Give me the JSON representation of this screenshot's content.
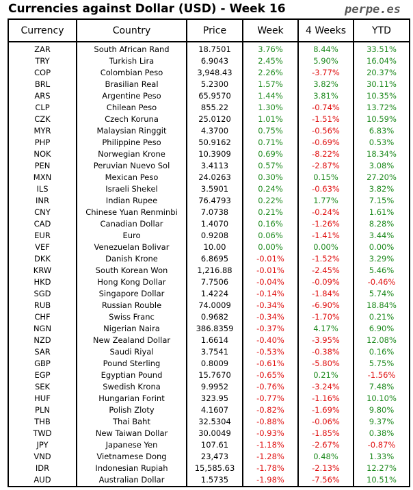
{
  "title": "Currencies against Dollar (USD) - Week 16",
  "brand": "perpe.es",
  "headers": [
    "Currency",
    "Country",
    "Price",
    "Week",
    "4 Weeks",
    "YTD"
  ],
  "rows": [
    [
      "ZAR",
      "South African Rand",
      "18.7501",
      "3.76%",
      "8.44%",
      "33.51%"
    ],
    [
      "TRY",
      "Turkish Lira",
      "6.9043",
      "2.45%",
      "5.90%",
      "16.04%"
    ],
    [
      "COP",
      "Colombian Peso",
      "3,948.43",
      "2.26%",
      "-3.77%",
      "20.37%"
    ],
    [
      "BRL",
      "Brasilian Real",
      "5.2300",
      "1.57%",
      "3.82%",
      "30.11%"
    ],
    [
      "ARS",
      "Argentine Peso",
      "65.9570",
      "1.44%",
      "3.81%",
      "10.35%"
    ],
    [
      "CLP",
      "Chilean Peso",
      "855.22",
      "1.30%",
      "-0.74%",
      "13.72%"
    ],
    [
      "CZK",
      "Czech Koruna",
      "25.0120",
      "1.01%",
      "-1.51%",
      "10.59%"
    ],
    [
      "MYR",
      "Malaysian Ringgit",
      "4.3700",
      "0.75%",
      "-0.56%",
      "6.83%"
    ],
    [
      "PHP",
      "Philippine Peso",
      "50.9162",
      "0.71%",
      "-0.69%",
      "0.53%"
    ],
    [
      "NOK",
      "Norwegian Krone",
      "10.3909",
      "0.69%",
      "-8.22%",
      "18.34%"
    ],
    [
      "PEN",
      "Peruvian Nuevo Sol",
      "3.4113",
      "0.57%",
      "-2.87%",
      "3.08%"
    ],
    [
      "MXN",
      "Mexican Peso",
      "24.0263",
      "0.30%",
      "0.15%",
      "27.20%"
    ],
    [
      "ILS",
      "Israeli Shekel",
      "3.5901",
      "0.24%",
      "-0.63%",
      "3.82%"
    ],
    [
      "INR",
      "Indian Rupee",
      "76.4793",
      "0.22%",
      "1.77%",
      "7.15%"
    ],
    [
      "CNY",
      "Chinese Yuan Renminbi",
      "7.0738",
      "0.21%",
      "-0.24%",
      "1.61%"
    ],
    [
      "CAD",
      "Canadian Dollar",
      "1.4070",
      "0.16%",
      "-1.26%",
      "8.28%"
    ],
    [
      "EUR",
      "Euro",
      "0.9208",
      "0.06%",
      "-1.41%",
      "3.44%"
    ],
    [
      "VEF",
      "Venezuelan Bolivar",
      "10.00",
      "0.00%",
      "0.00%",
      "0.00%"
    ],
    [
      "DKK",
      "Danish Krone",
      "6.8695",
      "-0.01%",
      "-1.52%",
      "3.29%"
    ],
    [
      "KRW",
      "South Korean Won",
      "1,216.88",
      "-0.01%",
      "-2.45%",
      "5.46%"
    ],
    [
      "HKD",
      "Hong Kong Dollar",
      "7.7506",
      "-0.04%",
      "-0.09%",
      "-0.46%"
    ],
    [
      "SGD",
      "Singapore Dollar",
      "1.4224",
      "-0.14%",
      "-1.84%",
      "5.74%"
    ],
    [
      "RUB",
      "Russian Rouble",
      "74.0009",
      "-0.34%",
      "-6.90%",
      "18.84%"
    ],
    [
      "CHF",
      "Swiss Franc",
      "0.9682",
      "-0.34%",
      "-1.70%",
      "0.21%"
    ],
    [
      "NGN",
      "Nigerian Naira",
      "386.8359",
      "-0.37%",
      "4.17%",
      "6.90%"
    ],
    [
      "NZD",
      "New Zealand Dollar",
      "1.6614",
      "-0.40%",
      "-3.95%",
      "12.08%"
    ],
    [
      "SAR",
      "Saudi Riyal",
      "3.7541",
      "-0.53%",
      "-0.38%",
      "0.16%"
    ],
    [
      "GBP",
      "Pound Sterling",
      "0.8009",
      "-0.61%",
      "-5.80%",
      "5.75%"
    ],
    [
      "EGP",
      "Egyptian Pound",
      "15.7670",
      "-0.65%",
      "0.21%",
      "-1.56%"
    ],
    [
      "SEK",
      "Swedish Krona",
      "9.9952",
      "-0.76%",
      "-3.24%",
      "7.48%"
    ],
    [
      "HUF",
      "Hungarian Forint",
      "323.95",
      "-0.77%",
      "-1.16%",
      "10.10%"
    ],
    [
      "PLN",
      "Polish Zloty",
      "4.1607",
      "-0.82%",
      "-1.69%",
      "9.80%"
    ],
    [
      "THB",
      "Thai Baht",
      "32.5304",
      "-0.88%",
      "-0.06%",
      "9.37%"
    ],
    [
      "TWD",
      "New Taiwan Dollar",
      "30.0049",
      "-0.93%",
      "-1.85%",
      "0.38%"
    ],
    [
      "JPY",
      "Japanese Yen",
      "107.61",
      "-1.18%",
      "-2.67%",
      "-0.87%"
    ],
    [
      "VND",
      "Vietnamese Dong",
      "23,473",
      "-1.28%",
      "0.48%",
      "1.33%"
    ],
    [
      "IDR",
      "Indonesian Rupiah",
      "15,585.63",
      "-1.78%",
      "-2.13%",
      "12.27%"
    ],
    [
      "AUD",
      "Australian Dollar",
      "1.5735",
      "-1.98%",
      "-7.56%",
      "10.51%"
    ]
  ],
  "colors": {
    "positive": "#1e8a1e",
    "negative": "#e01010"
  }
}
